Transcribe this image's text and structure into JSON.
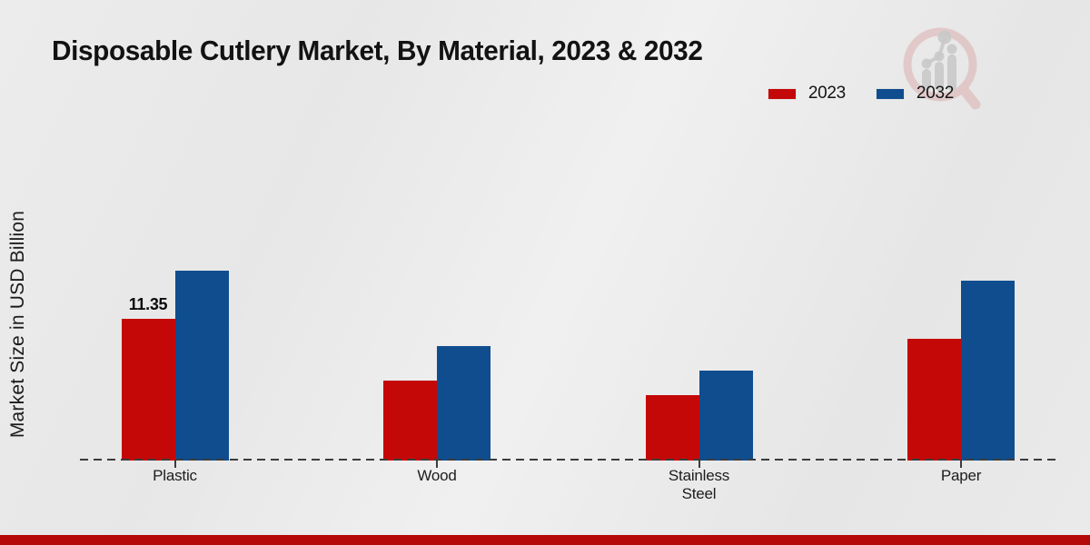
{
  "chart_data": {
    "type": "bar",
    "title": "Disposable Cutlery Market, By Material, 2023 & 2032",
    "ylabel": "Market Size in USD Billion",
    "categories": [
      "Plastic",
      "Wood",
      "Stainless Steel",
      "Paper"
    ],
    "series": [
      {
        "name": "2023",
        "color": "#c40808",
        "values": [
          11.35,
          6.4,
          5.25,
          9.75
        ],
        "data_labels": [
          "11.35",
          "",
          "",
          ""
        ]
      },
      {
        "name": "2032",
        "color": "#0f4d8f",
        "values": [
          15.2,
          9.15,
          7.2,
          14.4
        ],
        "data_labels": [
          "",
          "",
          "",
          ""
        ]
      }
    ],
    "ylim": [
      0,
      16
    ],
    "grid": false,
    "y_axis_ticks_visible": false,
    "legend_position": "top-right",
    "baseline_style": "dashed"
  },
  "watermark": {
    "icon": "magnifier-growth-chart-logo",
    "circle_color": "#d9a8a8",
    "bars_color": "#cccccc"
  },
  "footer": {
    "band_color": "#b50909"
  }
}
